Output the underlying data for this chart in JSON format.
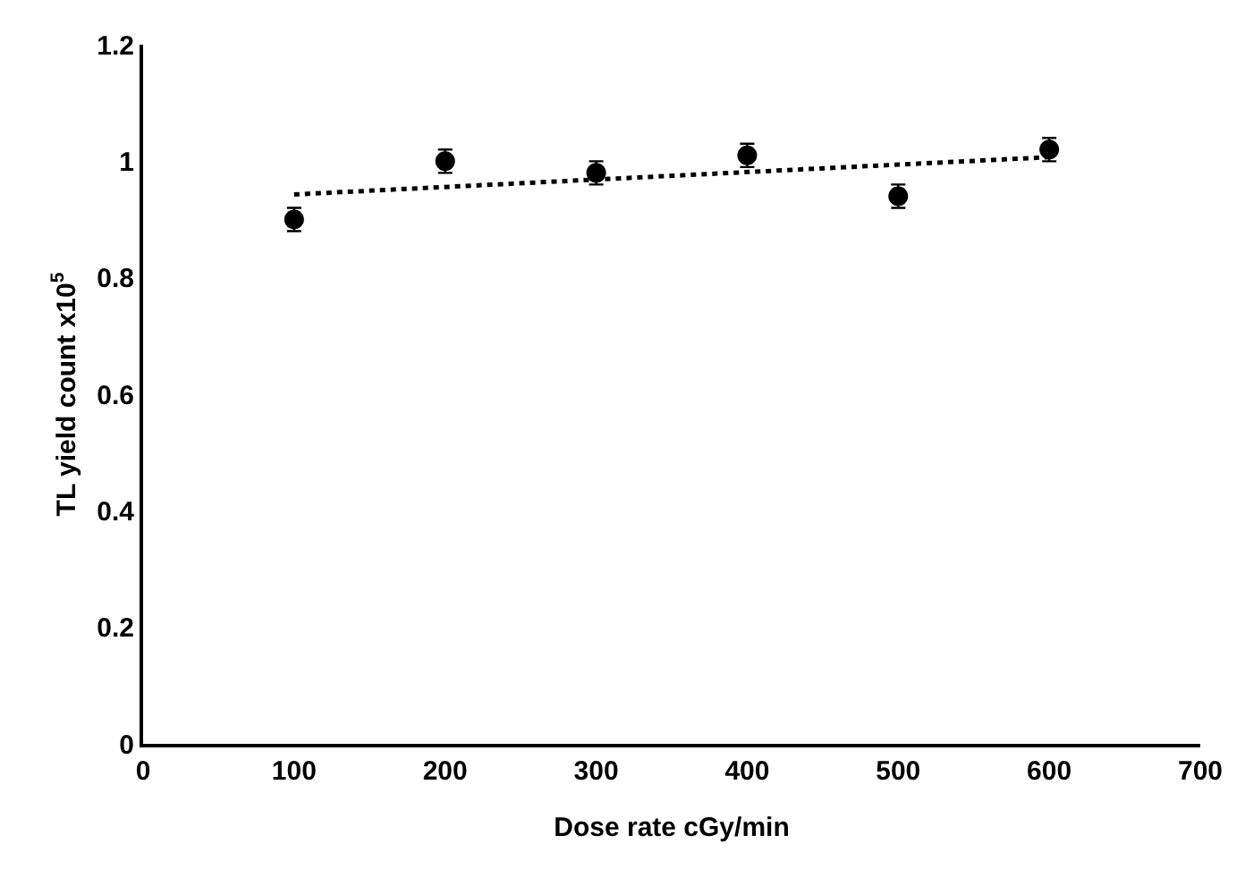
{
  "chart_data": {
    "type": "scatter",
    "xlabel": "Dose rate cGy/min",
    "ylabel": "TL yield count x10$^{5}$",
    "x": [
      100,
      200,
      300,
      400,
      500,
      600
    ],
    "series": [
      {
        "color": "#000000",
        "values": [
          0.9,
          1.0,
          0.98,
          1.01,
          0.94,
          1.02
        ],
        "errors": [
          0.02,
          0.02,
          0.02,
          0.02,
          0.02,
          0.02
        ]
      },
      {
        "type": "line",
        "color": "#000000",
        "x": [
          100,
          600
        ],
        "values": [
          0.943,
          1.007
        ],
        "line_style": "dotted",
        "marker": "none"
      }
    ],
    "xlim": [
      0,
      700
    ],
    "xticks": [
      0,
      100,
      200,
      300,
      400,
      500,
      600,
      700
    ],
    "ylim": [
      0,
      1.2
    ],
    "yticks": [
      0,
      0.2,
      0.4,
      0.6,
      0.8,
      1,
      1.2
    ]
  }
}
